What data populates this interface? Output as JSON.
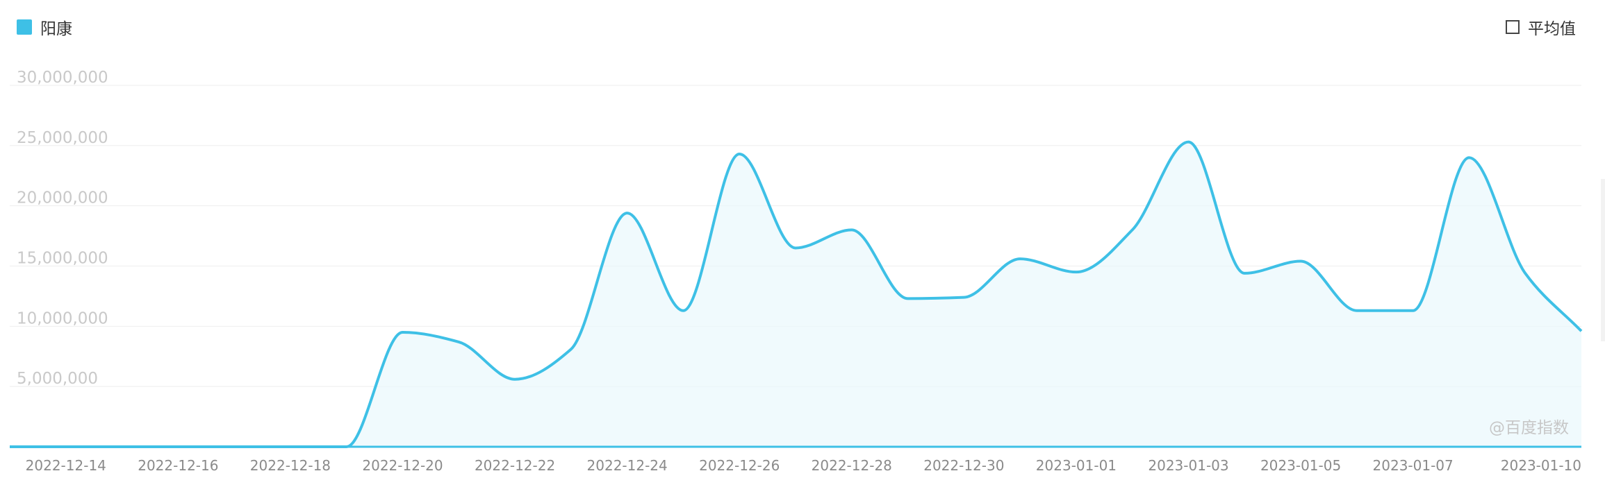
{
  "legend": {
    "series_label": "阳康",
    "series_color": "#3ec0e6",
    "avg_label": "平均值",
    "avg_checked": false
  },
  "watermark": "@百度指数",
  "chart_data": {
    "type": "area",
    "title": "",
    "xlabel": "",
    "ylabel": "",
    "ylim": [
      0,
      30000000
    ],
    "y_ticks": [
      "30,000,000",
      "25,000,000",
      "20,000,000",
      "15,000,000",
      "10,000,000",
      "5,000,000"
    ],
    "x_ticks": [
      "2022-12-14",
      "2022-12-16",
      "2022-12-18",
      "2022-12-20",
      "2022-12-22",
      "2022-12-24",
      "2022-12-26",
      "2022-12-28",
      "2022-12-30",
      "2023-01-01",
      "2023-01-03",
      "2023-01-05",
      "2023-01-07",
      "2023-01-10"
    ],
    "grid": true,
    "legend_position": "top-left",
    "x": [
      "2022-12-13",
      "2022-12-14",
      "2022-12-15",
      "2022-12-16",
      "2022-12-17",
      "2022-12-18",
      "2022-12-19",
      "2022-12-20",
      "2022-12-21",
      "2022-12-22",
      "2022-12-23",
      "2022-12-24",
      "2022-12-25",
      "2022-12-26",
      "2022-12-27",
      "2022-12-28",
      "2022-12-29",
      "2022-12-30",
      "2022-12-31",
      "2023-01-01",
      "2023-01-02",
      "2023-01-03",
      "2023-01-04",
      "2023-01-05",
      "2023-01-06",
      "2023-01-07",
      "2023-01-08",
      "2023-01-09",
      "2023-01-10"
    ],
    "series": [
      {
        "name": "阳康",
        "color": "#3ec0e6",
        "values": [
          0,
          0,
          0,
          0,
          0,
          0,
          0,
          9500000,
          8700000,
          5600000,
          8100000,
          19400000,
          11300000,
          24300000,
          16500000,
          18000000,
          12300000,
          12400000,
          15600000,
          14500000,
          18000000,
          25300000,
          14400000,
          15400000,
          11300000,
          11300000,
          24000000,
          14400000,
          9600000
        ]
      }
    ]
  }
}
